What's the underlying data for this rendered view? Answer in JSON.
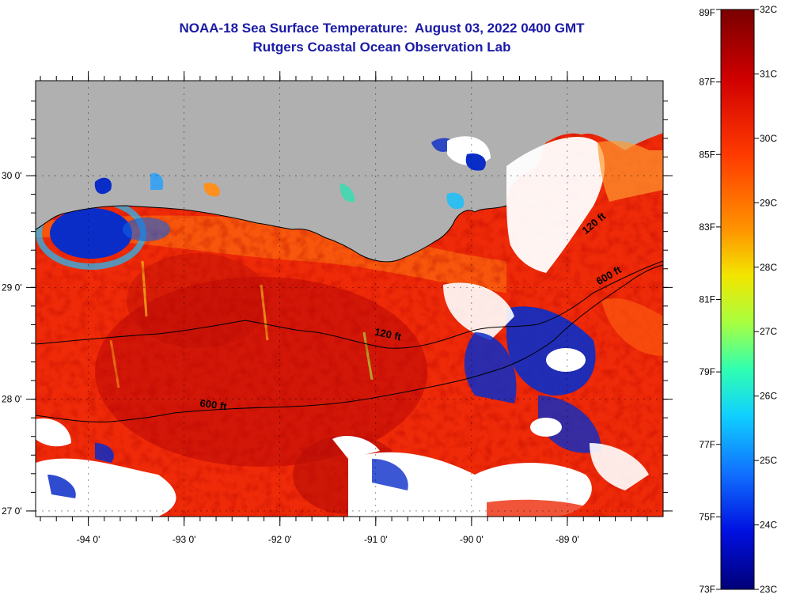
{
  "title": {
    "line1": "NOAA-18 Sea Surface Temperature:  August 03, 2022 0400 GMT",
    "line2": "Rutgers Coastal Ocean Observation Lab"
  },
  "map": {
    "lon_range": [
      -94.55,
      -88.0
    ],
    "lat_range": [
      26.95,
      30.85
    ],
    "lon_ticks": [
      {
        "value": -94,
        "label": "-94 0'"
      },
      {
        "value": -93,
        "label": "-93 0'"
      },
      {
        "value": -92,
        "label": "-92 0'"
      },
      {
        "value": -91,
        "label": "-91 0'"
      },
      {
        "value": -90,
        "label": "-90 0'"
      },
      {
        "value": -89,
        "label": "-89 0'"
      }
    ],
    "lat_ticks": [
      {
        "value": 30,
        "label": "30 0'"
      },
      {
        "value": 29,
        "label": "29 0'"
      },
      {
        "value": 28,
        "label": "28 0'"
      },
      {
        "value": 27,
        "label": "27 0'"
      }
    ],
    "depth_labels": [
      {
        "text": "120 ft",
        "lon": -90.88,
        "lat": 28.55
      },
      {
        "text": "600 ft",
        "lon": -92.7,
        "lat": 27.92
      },
      {
        "text": "120 ft",
        "lon": -88.7,
        "lat": 29.55
      },
      {
        "text": "600 ft",
        "lon": -88.55,
        "lat": 29.08
      }
    ],
    "colors": {
      "land": "#b0b0b0",
      "cloud": "#ffffff",
      "sea_warm": "#ee2a08",
      "sea_cool": "#0a2dc8"
    }
  },
  "colorbar": {
    "fahrenheit": [
      "89F",
      "87F",
      "85F",
      "83F",
      "81F",
      "79F",
      "77F",
      "75F",
      "73F"
    ],
    "celsius": [
      "32C",
      "31C",
      "30C",
      "29C",
      "28C",
      "27C",
      "26C",
      "25C",
      "24C",
      "23C"
    ],
    "colors": [
      "#800000",
      "#d80000",
      "#ff4000",
      "#ff9000",
      "#f0e000",
      "#a0ff40",
      "#20e0ff",
      "#1070ff",
      "#0000d0",
      "#000080"
    ]
  }
}
